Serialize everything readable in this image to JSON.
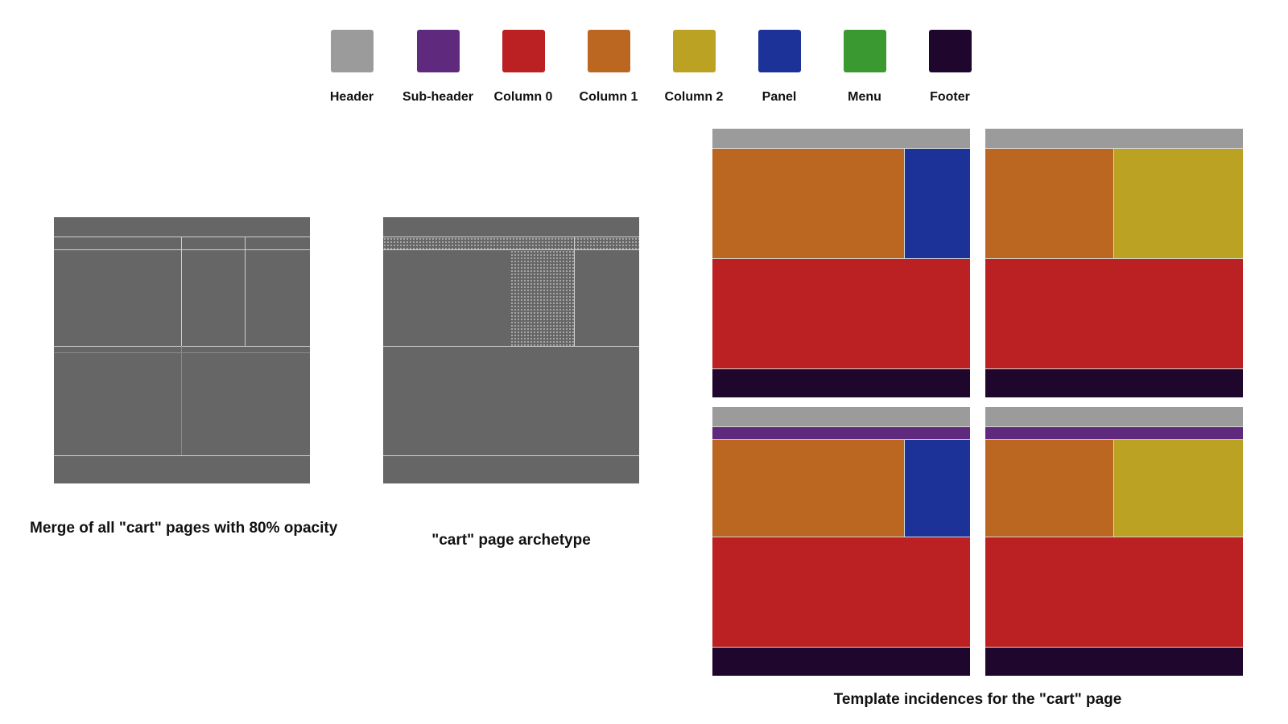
{
  "legend": [
    {
      "label": "Header",
      "color": "#9b9b9b"
    },
    {
      "label": "Sub-header",
      "color": "#5f2a7d"
    },
    {
      "label": "Column 0",
      "color": "#bb2022"
    },
    {
      "label": "Column 1",
      "color": "#bb6621"
    },
    {
      "label": "Column 2",
      "color": "#bca223"
    },
    {
      "label": "Panel",
      "color": "#1d3299"
    },
    {
      "label": "Menu",
      "color": "#3a9930"
    },
    {
      "label": "Footer",
      "color": "#1e062c"
    }
  ],
  "captions": {
    "merge": "Merge of all \"cart\" pages with 80% opacity",
    "archetype": "\"cart\" page archetype",
    "templates": "Template incidences for the \"cart\" page"
  }
}
